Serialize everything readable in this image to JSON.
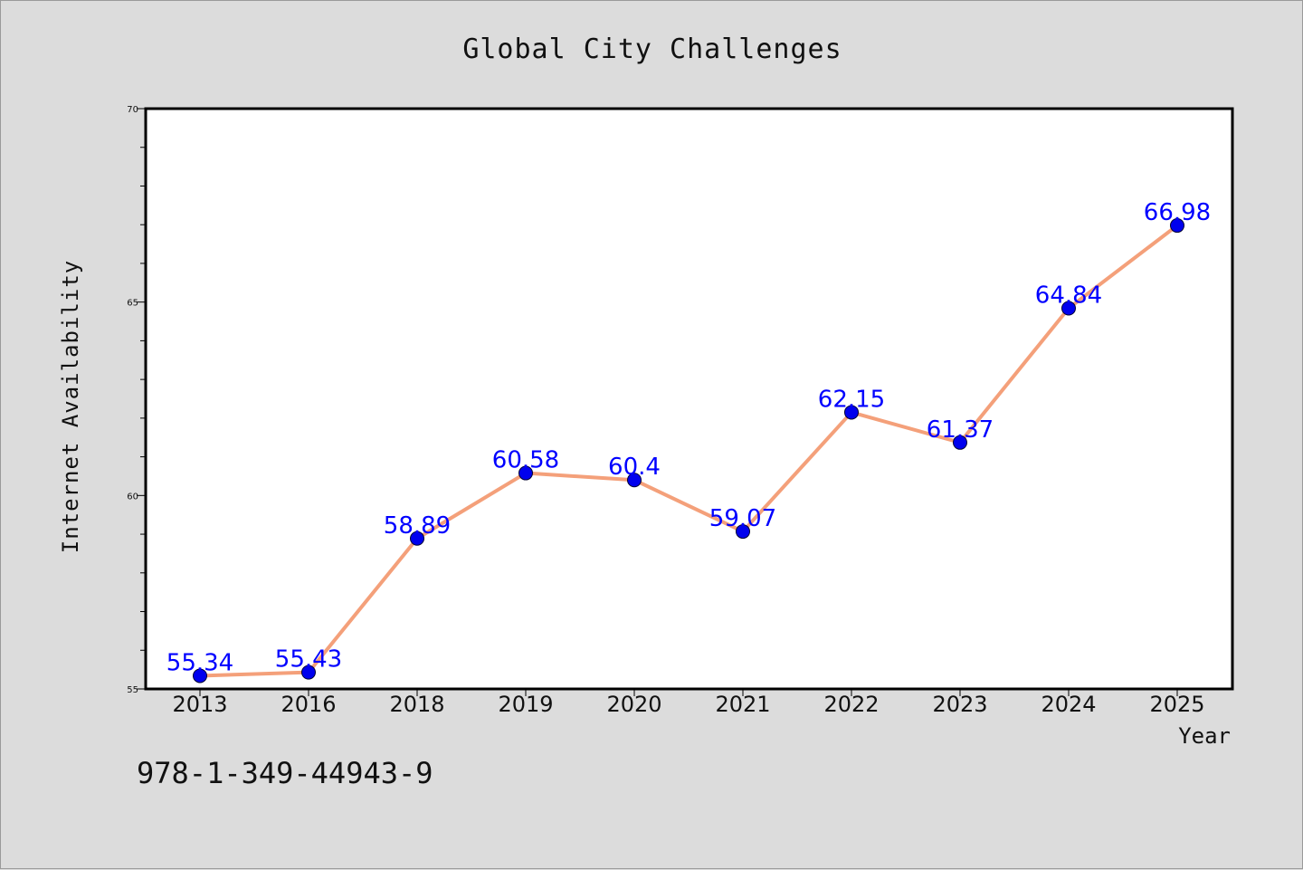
{
  "chart_data": {
    "type": "line",
    "title": "Global City Challenges",
    "xlabel": "Year",
    "ylabel": "Internet Availability",
    "categories": [
      "2013",
      "2016",
      "2018",
      "2019",
      "2020",
      "2021",
      "2022",
      "2023",
      "2024",
      "2025"
    ],
    "series": [
      {
        "values": [
          55.34,
          55.43,
          58.89,
          60.58,
          60.4,
          59.07,
          62.15,
          61.37,
          64.84,
          66.98
        ],
        "line_color": "#f4a07a",
        "marker_color": "#0000ee"
      }
    ],
    "data_labels": [
      "55.34",
      "55.43",
      "58.89",
      "60.58",
      "60.4",
      "59.07",
      "62.15",
      "61.37",
      "64.84",
      "66.98"
    ],
    "ylim": [
      55,
      70
    ],
    "yticks": [
      55,
      60,
      65,
      70
    ],
    "grid": false,
    "legend": "none",
    "label_color": "#0000ff"
  },
  "footer": {
    "isbn": "978-1-349-44943-9"
  }
}
